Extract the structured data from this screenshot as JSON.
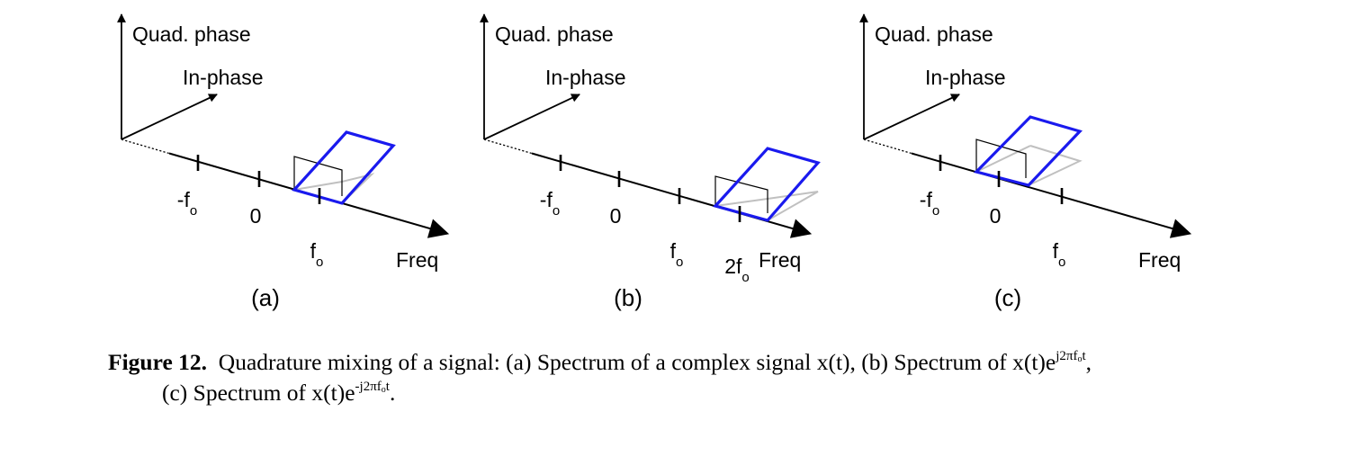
{
  "figure": {
    "panels": [
      {
        "label": "(a)",
        "axis_labels": {
          "quad": "Quad. phase",
          "in": "In-phase",
          "freq": "Freq"
        },
        "ticks": [
          {
            "label": "-f",
            "sub": "o"
          },
          {
            "label": "0",
            "sub": ""
          },
          {
            "label": "f",
            "sub": "o"
          }
        ]
      },
      {
        "label": "(b)",
        "axis_labels": {
          "quad": "Quad. phase",
          "in": "In-phase",
          "freq": "Freq"
        },
        "ticks": [
          {
            "label": "-f",
            "sub": "o"
          },
          {
            "label": "0",
            "sub": ""
          },
          {
            "label": "f",
            "sub": "o"
          },
          {
            "label": "2f",
            "sub": "o"
          }
        ]
      },
      {
        "label": "(c)",
        "axis_labels": {
          "quad": "Quad. phase",
          "in": "In-phase",
          "freq": "Freq"
        },
        "ticks": [
          {
            "label": "-f",
            "sub": "o"
          },
          {
            "label": "0",
            "sub": ""
          },
          {
            "label": "f",
            "sub": "o"
          }
        ]
      }
    ],
    "colors": {
      "spectrum": "#1a1aee",
      "shadow": "#c0c0c0",
      "axis": "#000000"
    }
  },
  "caption": {
    "label": "Figure 12.",
    "part1": "Quadrature mixing of a signal: (a) Spectrum of a complex signal x(t), (b) Spectrum of x(t)e",
    "exp1_pre": "j2πf",
    "exp1_sub": "o",
    "exp1_post": "t",
    "part2": ",",
    "part3": "(c) Spectrum of x(t)e",
    "exp2_pre": "-j2πf",
    "exp2_sub": "o",
    "exp2_post": "t",
    "part4": "."
  }
}
